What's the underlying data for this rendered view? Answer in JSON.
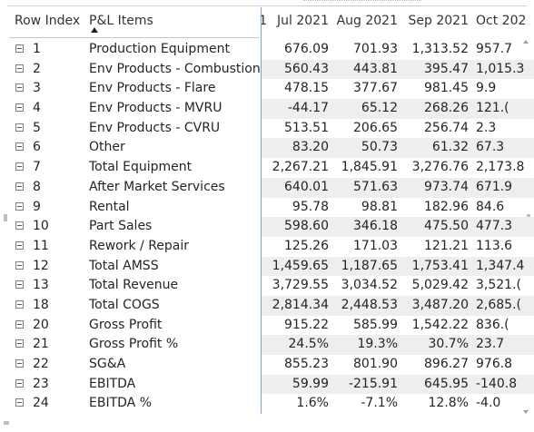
{
  "table": {
    "headers": {
      "row_index": "Row Index",
      "pl_items": "P&L Items",
      "prev_col_fragment": "1",
      "jul": "Jul 2021",
      "aug": "Aug 2021",
      "sep": "Sep 2021",
      "oct": "Oct 202"
    },
    "sort": {
      "column": "P&L Items",
      "direction": "ascending"
    },
    "rows": [
      {
        "idx": "1",
        "item": "Production Equipment",
        "jul": "676.09",
        "aug": "701.93",
        "sep": "1,313.52",
        "oct": "957.7"
      },
      {
        "idx": "2",
        "item": "Env Products - Combustion",
        "jul": "560.43",
        "aug": "443.81",
        "sep": "395.47",
        "oct": "1,015.3"
      },
      {
        "idx": "3",
        "item": "Env Products - Flare",
        "jul": "478.15",
        "aug": "377.67",
        "sep": "981.45",
        "oct": "9.9"
      },
      {
        "idx": "4",
        "item": "Env Products - MVRU",
        "jul": "-44.17",
        "aug": "65.12",
        "sep": "268.26",
        "oct": "121.("
      },
      {
        "idx": "5",
        "item": "Env Products - CVRU",
        "jul": "513.51",
        "aug": "206.65",
        "sep": "256.74",
        "oct": "2.3"
      },
      {
        "idx": "6",
        "item": "Other",
        "jul": "83.20",
        "aug": "50.73",
        "sep": "61.32",
        "oct": "67.3"
      },
      {
        "idx": "7",
        "item": "Total Equipment",
        "jul": "2,267.21",
        "aug": "1,845.91",
        "sep": "3,276.76",
        "oct": "2,173.8"
      },
      {
        "idx": "8",
        "item": "After Market Services",
        "jul": "640.01",
        "aug": "571.63",
        "sep": "973.74",
        "oct": "671.9"
      },
      {
        "idx": "9",
        "item": "Rental",
        "jul": "95.78",
        "aug": "98.81",
        "sep": "182.96",
        "oct": "84.6"
      },
      {
        "idx": "10",
        "item": "Part Sales",
        "jul": "598.60",
        "aug": "346.18",
        "sep": "475.50",
        "oct": "477.3"
      },
      {
        "idx": "11",
        "item": "Rework / Repair",
        "jul": "125.26",
        "aug": "171.03",
        "sep": "121.21",
        "oct": "113.6"
      },
      {
        "idx": "12",
        "item": "Total AMSS",
        "jul": "1,459.65",
        "aug": "1,187.65",
        "sep": "1,753.41",
        "oct": "1,347.4"
      },
      {
        "idx": "13",
        "item": "Total Revenue",
        "jul": "3,729.55",
        "aug": "3,034.52",
        "sep": "5,029.42",
        "oct": "3,521.("
      },
      {
        "idx": "18",
        "item": "Total COGS",
        "jul": "2,814.34",
        "aug": "2,448.53",
        "sep": "3,487.20",
        "oct": "2,685.("
      },
      {
        "idx": "20",
        "item": "Gross Profit",
        "jul": "915.22",
        "aug": "585.99",
        "sep": "1,542.22",
        "oct": "836.("
      },
      {
        "idx": "21",
        "item": "Gross Profit %",
        "jul": "24.5%",
        "aug": "19.3%",
        "sep": "30.7%",
        "oct": "23.7"
      },
      {
        "idx": "22",
        "item": "SG&A",
        "jul": "855.23",
        "aug": "801.90",
        "sep": "896.27",
        "oct": "976.8"
      },
      {
        "idx": "23",
        "item": "EBITDA",
        "jul": "59.99",
        "aug": "-215.91",
        "sep": "645.95",
        "oct": "-140.8"
      },
      {
        "idx": "24",
        "item": "EBITDA %",
        "jul": "1.6%",
        "aug": "-7.1%",
        "sep": "12.8%",
        "oct": "-4.0"
      }
    ]
  },
  "colors": {
    "freeze_line": "#7aa6d6",
    "alt_band": "#eeeeee",
    "text": "#252423"
  },
  "icons": {
    "expander": "collapse-minus-icon",
    "sort": "sort-ascending-icon"
  }
}
